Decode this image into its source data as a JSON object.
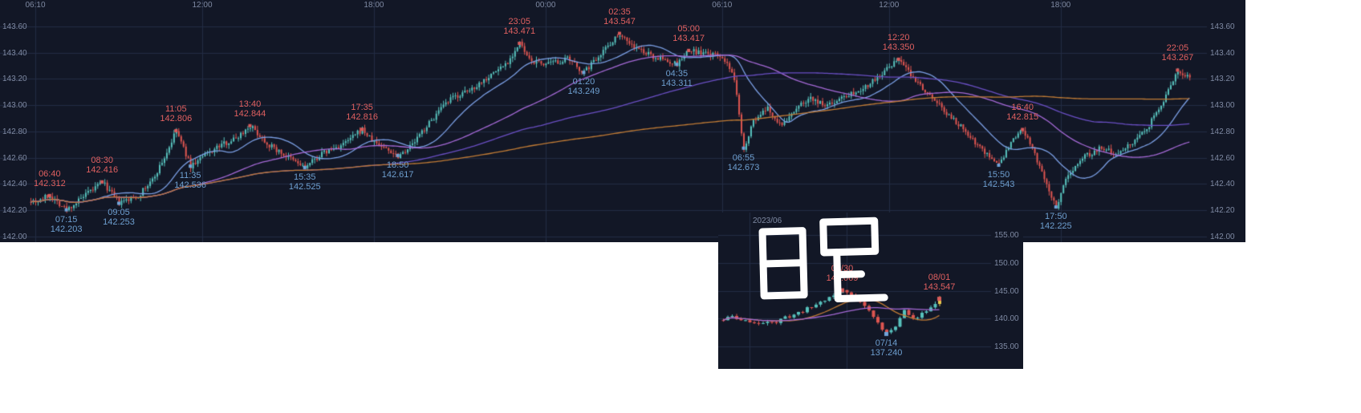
{
  "page": {
    "background": "#ffffff"
  },
  "theme": {
    "panel_bg": "#121726",
    "grid_color": "#232c44",
    "axis_text_color": "#7f8aa3",
    "up_candle": "#57c1bc",
    "down_candle": "#dd5550",
    "high_label_color": "#e06060",
    "low_label_color": "#6e9fd0",
    "high_marker": "#d95b5b",
    "low_marker": "#6fa3d9",
    "current_candle_highlight": "#e8c84a",
    "handwriting_color": "#ffffff"
  },
  "inset": {
    "month_label": "2023/06",
    "handwritten_label": "日足"
  },
  "chart_data": [
    {
      "id": "intraday-5min-candles",
      "type": "candlestick",
      "x_axis": {
        "position": "top",
        "ticks": [
          {
            "label": "06:10",
            "t": 0
          },
          {
            "label": "12:00",
            "t": 350
          },
          {
            "label": "18:00",
            "t": 710
          },
          {
            "label": "00:00",
            "t": 1070
          },
          {
            "label": "06:10",
            "t": 1440
          },
          {
            "label": "12:00",
            "t": 1790
          },
          {
            "label": "18:00",
            "t": 2150
          }
        ]
      },
      "y_axis": {
        "side": "both",
        "ticks": [
          143.6,
          143.4,
          143.2,
          143.0,
          142.8,
          142.6,
          142.4,
          142.2,
          142.0
        ],
        "min": 141.96,
        "max": 143.8
      },
      "candle_interval_minutes": 5,
      "price_path": [
        [
          -10,
          142.28
        ],
        [
          0,
          142.27
        ],
        [
          30,
          142.312
        ],
        [
          65,
          142.203
        ],
        [
          100,
          142.3
        ],
        [
          140,
          142.416
        ],
        [
          175,
          142.253
        ],
        [
          215,
          142.31
        ],
        [
          245,
          142.43
        ],
        [
          270,
          142.6
        ],
        [
          295,
          142.806
        ],
        [
          325,
          142.536
        ],
        [
          355,
          142.62
        ],
        [
          390,
          142.7
        ],
        [
          420,
          142.75
        ],
        [
          450,
          142.844
        ],
        [
          485,
          142.71
        ],
        [
          525,
          142.61
        ],
        [
          565,
          142.525
        ],
        [
          600,
          142.63
        ],
        [
          645,
          142.7
        ],
        [
          685,
          142.816
        ],
        [
          705,
          142.73
        ],
        [
          760,
          142.617
        ],
        [
          790,
          142.7
        ],
        [
          815,
          142.82
        ],
        [
          845,
          142.95
        ],
        [
          875,
          143.06
        ],
        [
          905,
          143.1
        ],
        [
          935,
          143.18
        ],
        [
          965,
          143.26
        ],
        [
          990,
          143.33
        ],
        [
          1015,
          143.471
        ],
        [
          1035,
          143.34
        ],
        [
          1075,
          143.31
        ],
        [
          1115,
          143.35
        ],
        [
          1150,
          143.249
        ],
        [
          1185,
          143.4
        ],
        [
          1225,
          143.547
        ],
        [
          1255,
          143.44
        ],
        [
          1295,
          143.37
        ],
        [
          1345,
          143.311
        ],
        [
          1370,
          143.417
        ],
        [
          1405,
          143.39
        ],
        [
          1440,
          143.37
        ],
        [
          1465,
          143.2
        ],
        [
          1485,
          142.673
        ],
        [
          1505,
          142.88
        ],
        [
          1535,
          142.97
        ],
        [
          1565,
          142.84
        ],
        [
          1595,
          142.98
        ],
        [
          1625,
          143.06
        ],
        [
          1655,
          142.99
        ],
        [
          1695,
          143.07
        ],
        [
          1735,
          143.13
        ],
        [
          1775,
          143.24
        ],
        [
          1810,
          143.35
        ],
        [
          1840,
          143.21
        ],
        [
          1875,
          143.08
        ],
        [
          1905,
          142.96
        ],
        [
          1945,
          142.82
        ],
        [
          1985,
          142.66
        ],
        [
          2020,
          142.543
        ],
        [
          2045,
          142.71
        ],
        [
          2070,
          142.815
        ],
        [
          2095,
          142.62
        ],
        [
          2120,
          142.38
        ],
        [
          2140,
          142.225
        ],
        [
          2165,
          142.48
        ],
        [
          2195,
          142.6
        ],
        [
          2230,
          142.67
        ],
        [
          2265,
          142.64
        ],
        [
          2300,
          142.72
        ],
        [
          2330,
          142.82
        ],
        [
          2360,
          143.0
        ],
        [
          2395,
          143.267
        ],
        [
          2420,
          143.21
        ]
      ],
      "swings": [
        {
          "time": "06:40",
          "t": 30,
          "price": 142.312,
          "price_label": "142.312",
          "kind": "high"
        },
        {
          "time": "07:15",
          "t": 65,
          "price": 142.203,
          "price_label": "142.203",
          "kind": "low"
        },
        {
          "time": "08:30",
          "t": 140,
          "price": 142.416,
          "price_label": "142.416",
          "kind": "high"
        },
        {
          "time": "09:05",
          "t": 175,
          "price": 142.253,
          "price_label": "142.253",
          "kind": "low"
        },
        {
          "time": "11:05",
          "t": 295,
          "price": 142.806,
          "price_label": "142.806",
          "kind": "high"
        },
        {
          "time": "11:35",
          "t": 325,
          "price": 142.536,
          "price_label": "142.536",
          "kind": "low"
        },
        {
          "time": "13:40",
          "t": 450,
          "price": 142.844,
          "price_label": "142.844",
          "kind": "high"
        },
        {
          "time": "15:35",
          "t": 565,
          "price": 142.525,
          "price_label": "142.525",
          "kind": "low"
        },
        {
          "time": "17:35",
          "t": 685,
          "price": 142.816,
          "price_label": "142.816",
          "kind": "high"
        },
        {
          "time": "18:50",
          "t": 760,
          "price": 142.617,
          "price_label": "142.617",
          "kind": "low"
        },
        {
          "time": "23:05",
          "t": 1015,
          "price": 143.471,
          "price_label": "143.471",
          "kind": "high"
        },
        {
          "time": "01:20",
          "t": 1150,
          "price": 143.249,
          "price_label": "143.249",
          "kind": "low"
        },
        {
          "time": "02:35",
          "t": 1225,
          "price": 143.547,
          "price_label": "143.547",
          "kind": "high"
        },
        {
          "time": "04:35",
          "t": 1345,
          "price": 143.311,
          "price_label": "143.311",
          "kind": "low"
        },
        {
          "time": "05:00",
          "t": 1370,
          "price": 143.417,
          "price_label": "143.417",
          "kind": "high"
        },
        {
          "time": "06:55",
          "t": 1485,
          "price": 142.673,
          "price_label": "142.673",
          "kind": "low"
        },
        {
          "time": "12:20",
          "t": 1810,
          "price": 143.35,
          "price_label": "143.350",
          "kind": "high"
        },
        {
          "time": "15:50",
          "t": 2020,
          "price": 142.543,
          "price_label": "142.543",
          "kind": "low"
        },
        {
          "time": "16:40",
          "t": 2070,
          "price": 142.815,
          "price_label": "142.815",
          "kind": "high"
        },
        {
          "time": "17:50",
          "t": 2140,
          "price": 142.225,
          "price_label": "142.225",
          "kind": "low"
        },
        {
          "time": "22:05",
          "t": 2395,
          "price": 143.267,
          "price_label": "143.267",
          "kind": "high"
        }
      ],
      "moving_averages": [
        {
          "window": 21,
          "color": "#7b9fe4"
        },
        {
          "window": 70,
          "color": "#a569d6"
        },
        {
          "window": 150,
          "color": "#6a4fc4"
        },
        {
          "window": 300,
          "color": "#c07b35"
        }
      ]
    },
    {
      "id": "daily-candles",
      "type": "candlestick",
      "x_axis": {
        "position": "none",
        "gridlines": [
          {
            "t": 6,
            "label": "2023/06"
          },
          {
            "t": 28,
            "label": ""
          }
        ]
      },
      "y_axis": {
        "side": "right",
        "ticks": [
          155.0,
          150.0,
          145.0,
          140.0,
          135.0
        ],
        "min": 131.0,
        "max": 159.0
      },
      "candle_interval": "1 day",
      "price_path": [
        [
          0,
          139.7
        ],
        [
          1,
          140.1
        ],
        [
          2,
          140.45
        ],
        [
          3,
          139.95
        ],
        [
          4,
          139.6
        ],
        [
          5,
          139.9
        ],
        [
          6,
          139.4
        ],
        [
          8,
          138.9
        ],
        [
          10,
          139.7
        ],
        [
          12,
          139.3
        ],
        [
          14,
          140.2
        ],
        [
          16,
          140.7
        ],
        [
          18,
          141.4
        ],
        [
          20,
          142.1
        ],
        [
          22,
          143.0
        ],
        [
          24,
          143.8
        ],
        [
          26,
          144.6
        ],
        [
          27,
          145.069
        ],
        [
          29,
          144.3
        ],
        [
          31,
          143.0
        ],
        [
          33,
          141.4
        ],
        [
          35,
          139.2
        ],
        [
          37,
          137.24
        ],
        [
          39,
          138.8
        ],
        [
          41,
          141.4
        ],
        [
          42,
          140.6
        ],
        [
          43,
          139.9
        ],
        [
          45,
          141.0
        ],
        [
          47,
          142.2
        ],
        [
          49,
          143.547
        ]
      ],
      "swings": [
        {
          "time": "06/30",
          "t": 27,
          "price": 145.069,
          "price_label": "145.069",
          "kind": "high"
        },
        {
          "time": "07/14",
          "t": 37,
          "price": 137.24,
          "price_label": "137.240",
          "kind": "low"
        },
        {
          "time": "08/01",
          "t": 49,
          "price": 143.547,
          "price_label": "143.547",
          "kind": "high"
        }
      ],
      "moving_averages": [
        {
          "window": 13,
          "color": "#c07b35"
        },
        {
          "window": 26,
          "color": "#a569d6"
        }
      ],
      "last_candle_highlighted": true
    }
  ]
}
